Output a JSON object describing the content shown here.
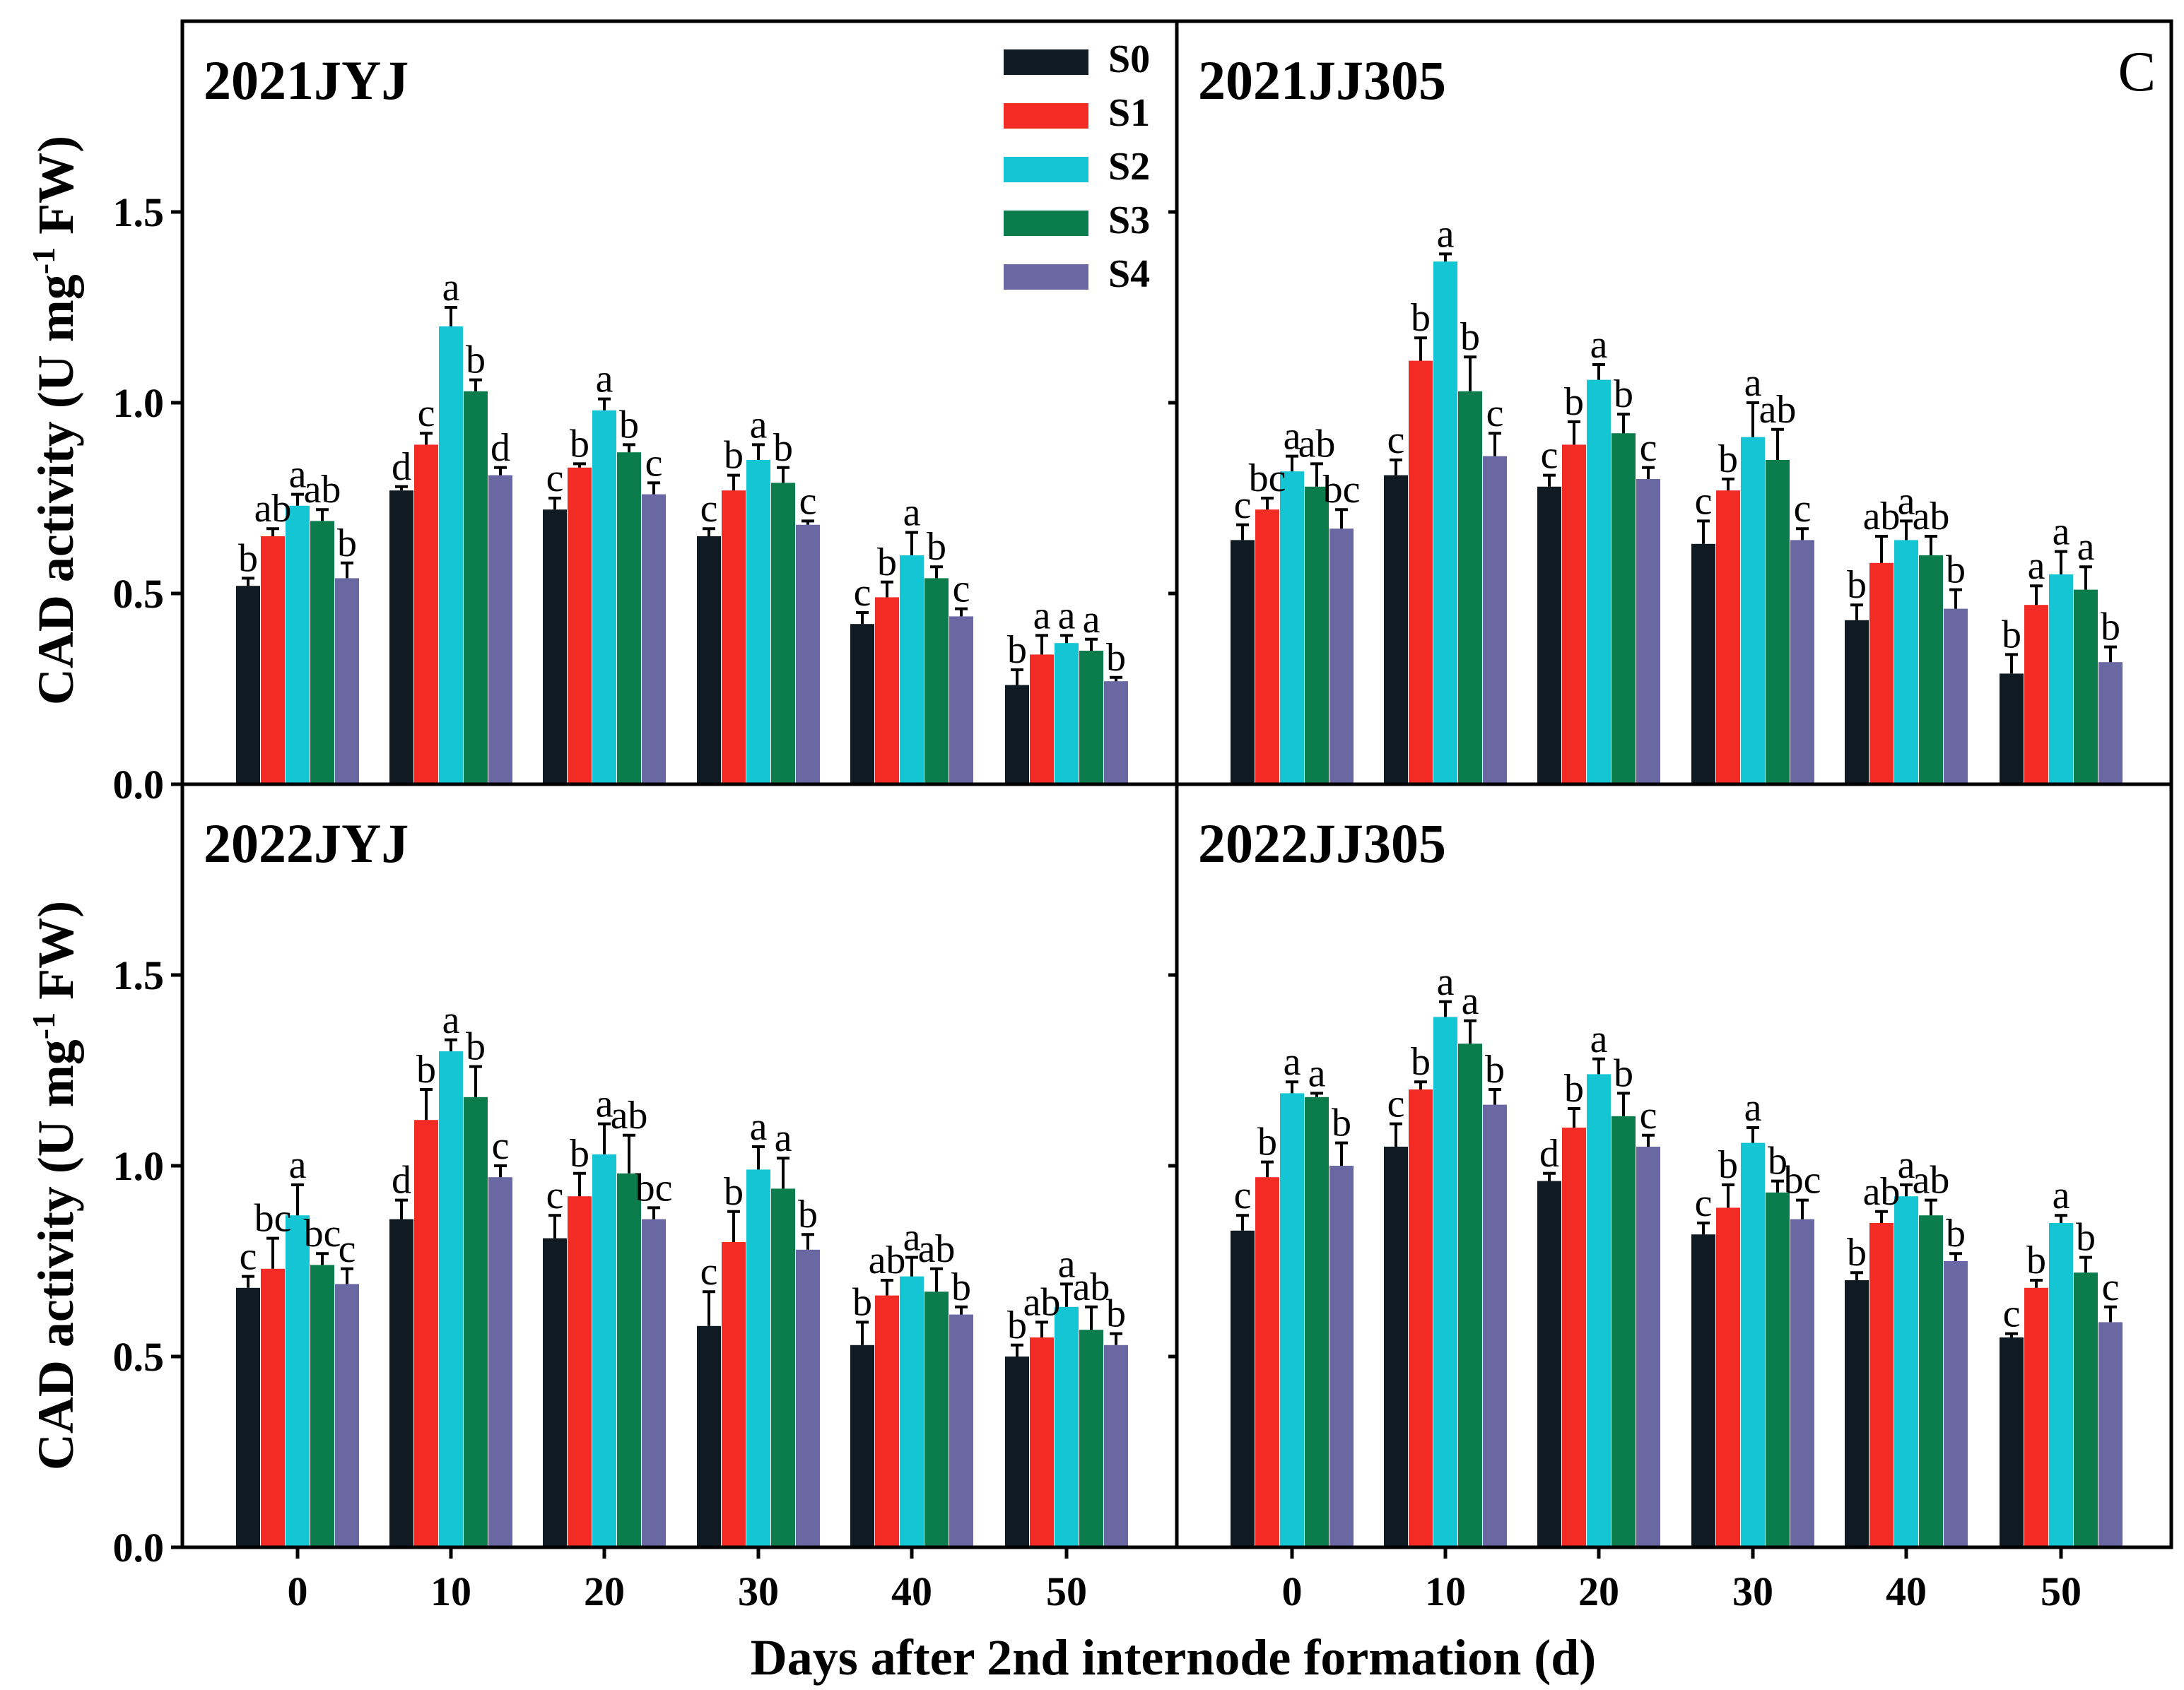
{
  "figure": {
    "xlabel": "Days after 2nd internode formation (d)",
    "ylabel_prefix": "CAD activity (U mg",
    "ylabel_sup": "-1",
    "ylabel_suffix": " FW)",
    "panel_letter": "C"
  },
  "legend": [
    {
      "name": "S0",
      "color": "#0f1a22"
    },
    {
      "name": "S1",
      "color": "#f22c24"
    },
    {
      "name": "S2",
      "color": "#14c6d3"
    },
    {
      "name": "S3",
      "color": "#0b7d4c"
    },
    {
      "name": "S4",
      "color": "#6a68a3"
    }
  ],
  "chart_data": [
    {
      "type": "bar",
      "title": "2021JYJ",
      "categories": [
        "0",
        "10",
        "20",
        "30",
        "40",
        "50"
      ],
      "ylim": [
        0,
        2.0
      ],
      "yticks": [
        0.0,
        0.5,
        1.0,
        1.5
      ],
      "ytick_labels": [
        "0.0",
        "0.5",
        "1.0",
        "1.5"
      ],
      "series": [
        {
          "name": "S0",
          "values": [
            0.52,
            0.77,
            0.72,
            0.65,
            0.42,
            0.26
          ],
          "errors": [
            0.02,
            0.01,
            0.03,
            0.02,
            0.03,
            0.04
          ],
          "labels": [
            "b",
            "d",
            "c",
            "c",
            "c",
            "b"
          ]
        },
        {
          "name": "S1",
          "values": [
            0.65,
            0.89,
            0.83,
            0.77,
            0.49,
            0.34
          ],
          "errors": [
            0.02,
            0.03,
            0.01,
            0.04,
            0.04,
            0.05
          ],
          "labels": [
            "ab",
            "c",
            "b",
            "b",
            "b",
            "a"
          ]
        },
        {
          "name": "S2",
          "values": [
            0.73,
            1.2,
            0.98,
            0.85,
            0.6,
            0.37
          ],
          "errors": [
            0.03,
            0.05,
            0.03,
            0.04,
            0.06,
            0.02
          ],
          "labels": [
            "a",
            "a",
            "a",
            "a",
            "a",
            "a"
          ]
        },
        {
          "name": "S3",
          "values": [
            0.69,
            1.03,
            0.87,
            0.79,
            0.54,
            0.35
          ],
          "errors": [
            0.03,
            0.03,
            0.02,
            0.04,
            0.03,
            0.03
          ],
          "labels": [
            "ab",
            "b",
            "b",
            "b",
            "b",
            "a"
          ]
        },
        {
          "name": "S4",
          "values": [
            0.54,
            0.81,
            0.76,
            0.68,
            0.44,
            0.27
          ],
          "errors": [
            0.04,
            0.02,
            0.03,
            0.01,
            0.02,
            0.01
          ],
          "labels": [
            "b",
            "d",
            "c",
            "c",
            "c",
            "b"
          ]
        }
      ]
    },
    {
      "type": "bar",
      "title": "2021JJ305",
      "categories": [
        "0",
        "10",
        "20",
        "30",
        "40",
        "50"
      ],
      "ylim": [
        0,
        2.0
      ],
      "yticks": [
        0.0,
        0.5,
        1.0,
        1.5
      ],
      "ytick_labels": [],
      "series": [
        {
          "name": "S0",
          "values": [
            0.64,
            0.81,
            0.78,
            0.63,
            0.43,
            0.29
          ],
          "errors": [
            0.04,
            0.04,
            0.03,
            0.06,
            0.04,
            0.05
          ],
          "labels": [
            "c",
            "c",
            "c",
            "c",
            "b",
            "b"
          ]
        },
        {
          "name": "S1",
          "values": [
            0.72,
            1.11,
            0.89,
            0.77,
            0.58,
            0.47
          ],
          "errors": [
            0.03,
            0.06,
            0.06,
            0.03,
            0.07,
            0.05
          ],
          "labels": [
            "bc",
            "b",
            "b",
            "b",
            "ab",
            "a"
          ]
        },
        {
          "name": "S2",
          "values": [
            0.82,
            1.37,
            1.06,
            0.91,
            0.64,
            0.55
          ],
          "errors": [
            0.04,
            0.02,
            0.04,
            0.09,
            0.05,
            0.06
          ],
          "labels": [
            "a",
            "a",
            "a",
            "a",
            "a",
            "a"
          ]
        },
        {
          "name": "S3",
          "values": [
            0.78,
            1.03,
            0.92,
            0.85,
            0.6,
            0.51
          ],
          "errors": [
            0.06,
            0.09,
            0.05,
            0.08,
            0.05,
            0.06
          ],
          "labels": [
            "ab",
            "b",
            "b",
            "ab",
            "ab",
            "a"
          ]
        },
        {
          "name": "S4",
          "values": [
            0.67,
            0.86,
            0.8,
            0.64,
            0.46,
            0.32
          ],
          "errors": [
            0.05,
            0.06,
            0.03,
            0.03,
            0.05,
            0.04
          ],
          "labels": [
            "bc",
            "c",
            "c",
            "c",
            "b",
            "b"
          ]
        }
      ]
    },
    {
      "type": "bar",
      "title": "2022JYJ",
      "categories": [
        "0",
        "10",
        "20",
        "30",
        "40",
        "50"
      ],
      "ylim": [
        0,
        2.0
      ],
      "yticks": [
        0.0,
        0.5,
        1.0,
        1.5
      ],
      "ytick_labels": [
        "0.0",
        "0.5",
        "1.0",
        "1.5"
      ],
      "series": [
        {
          "name": "S0",
          "values": [
            0.68,
            0.86,
            0.81,
            0.58,
            0.53,
            0.5
          ],
          "errors": [
            0.03,
            0.05,
            0.06,
            0.09,
            0.06,
            0.03
          ],
          "labels": [
            "c",
            "d",
            "c",
            "c",
            "b",
            "b"
          ]
        },
        {
          "name": "S1",
          "values": [
            0.73,
            1.12,
            0.92,
            0.8,
            0.66,
            0.55
          ],
          "errors": [
            0.08,
            0.08,
            0.06,
            0.08,
            0.04,
            0.04
          ],
          "labels": [
            "bc",
            "b",
            "b",
            "b",
            "ab",
            "ab"
          ]
        },
        {
          "name": "S2",
          "values": [
            0.87,
            1.3,
            1.03,
            0.99,
            0.71,
            0.63
          ],
          "errors": [
            0.08,
            0.03,
            0.08,
            0.06,
            0.05,
            0.06
          ],
          "labels": [
            "a",
            "a",
            "a",
            "a",
            "a",
            "a"
          ]
        },
        {
          "name": "S3",
          "values": [
            0.74,
            1.18,
            0.98,
            0.94,
            0.67,
            0.57
          ],
          "errors": [
            0.03,
            0.08,
            0.1,
            0.08,
            0.06,
            0.06
          ],
          "labels": [
            "bc",
            "b",
            "ab",
            "a",
            "ab",
            "ab"
          ]
        },
        {
          "name": "S4",
          "values": [
            0.69,
            0.97,
            0.86,
            0.78,
            0.61,
            0.53
          ],
          "errors": [
            0.04,
            0.03,
            0.03,
            0.04,
            0.02,
            0.03
          ],
          "labels": [
            "c",
            "c",
            "bc",
            "b",
            "b",
            "b"
          ]
        }
      ]
    },
    {
      "type": "bar",
      "title": "2022JJ305",
      "categories": [
        "0",
        "10",
        "20",
        "30",
        "40",
        "50"
      ],
      "ylim": [
        0,
        2.0
      ],
      "yticks": [
        0.0,
        0.5,
        1.0,
        1.5
      ],
      "ytick_labels": [],
      "series": [
        {
          "name": "S0",
          "values": [
            0.83,
            1.05,
            0.96,
            0.82,
            0.7,
            0.55
          ],
          "errors": [
            0.04,
            0.06,
            0.02,
            0.03,
            0.02,
            0.01
          ],
          "labels": [
            "c",
            "c",
            "d",
            "c",
            "b",
            "c"
          ]
        },
        {
          "name": "S1",
          "values": [
            0.97,
            1.2,
            1.1,
            0.89,
            0.85,
            0.68
          ],
          "errors": [
            0.04,
            0.02,
            0.05,
            0.06,
            0.03,
            0.02
          ],
          "labels": [
            "b",
            "b",
            "b",
            "b",
            "ab",
            "b"
          ]
        },
        {
          "name": "S2",
          "values": [
            1.19,
            1.39,
            1.24,
            1.06,
            0.92,
            0.85
          ],
          "errors": [
            0.03,
            0.04,
            0.04,
            0.04,
            0.03,
            0.02
          ],
          "labels": [
            "a",
            "a",
            "a",
            "a",
            "a",
            "a"
          ]
        },
        {
          "name": "S3",
          "values": [
            1.18,
            1.32,
            1.13,
            0.93,
            0.87,
            0.72
          ],
          "errors": [
            0.01,
            0.06,
            0.06,
            0.03,
            0.04,
            0.04
          ],
          "labels": [
            "a",
            "a",
            "b",
            "b",
            "ab",
            "b"
          ]
        },
        {
          "name": "S4",
          "values": [
            1.0,
            1.16,
            1.05,
            0.86,
            0.75,
            0.59
          ],
          "errors": [
            0.06,
            0.04,
            0.03,
            0.05,
            0.02,
            0.04
          ],
          "labels": [
            "b",
            "b",
            "c",
            "bc",
            "b",
            "c"
          ]
        }
      ]
    }
  ]
}
